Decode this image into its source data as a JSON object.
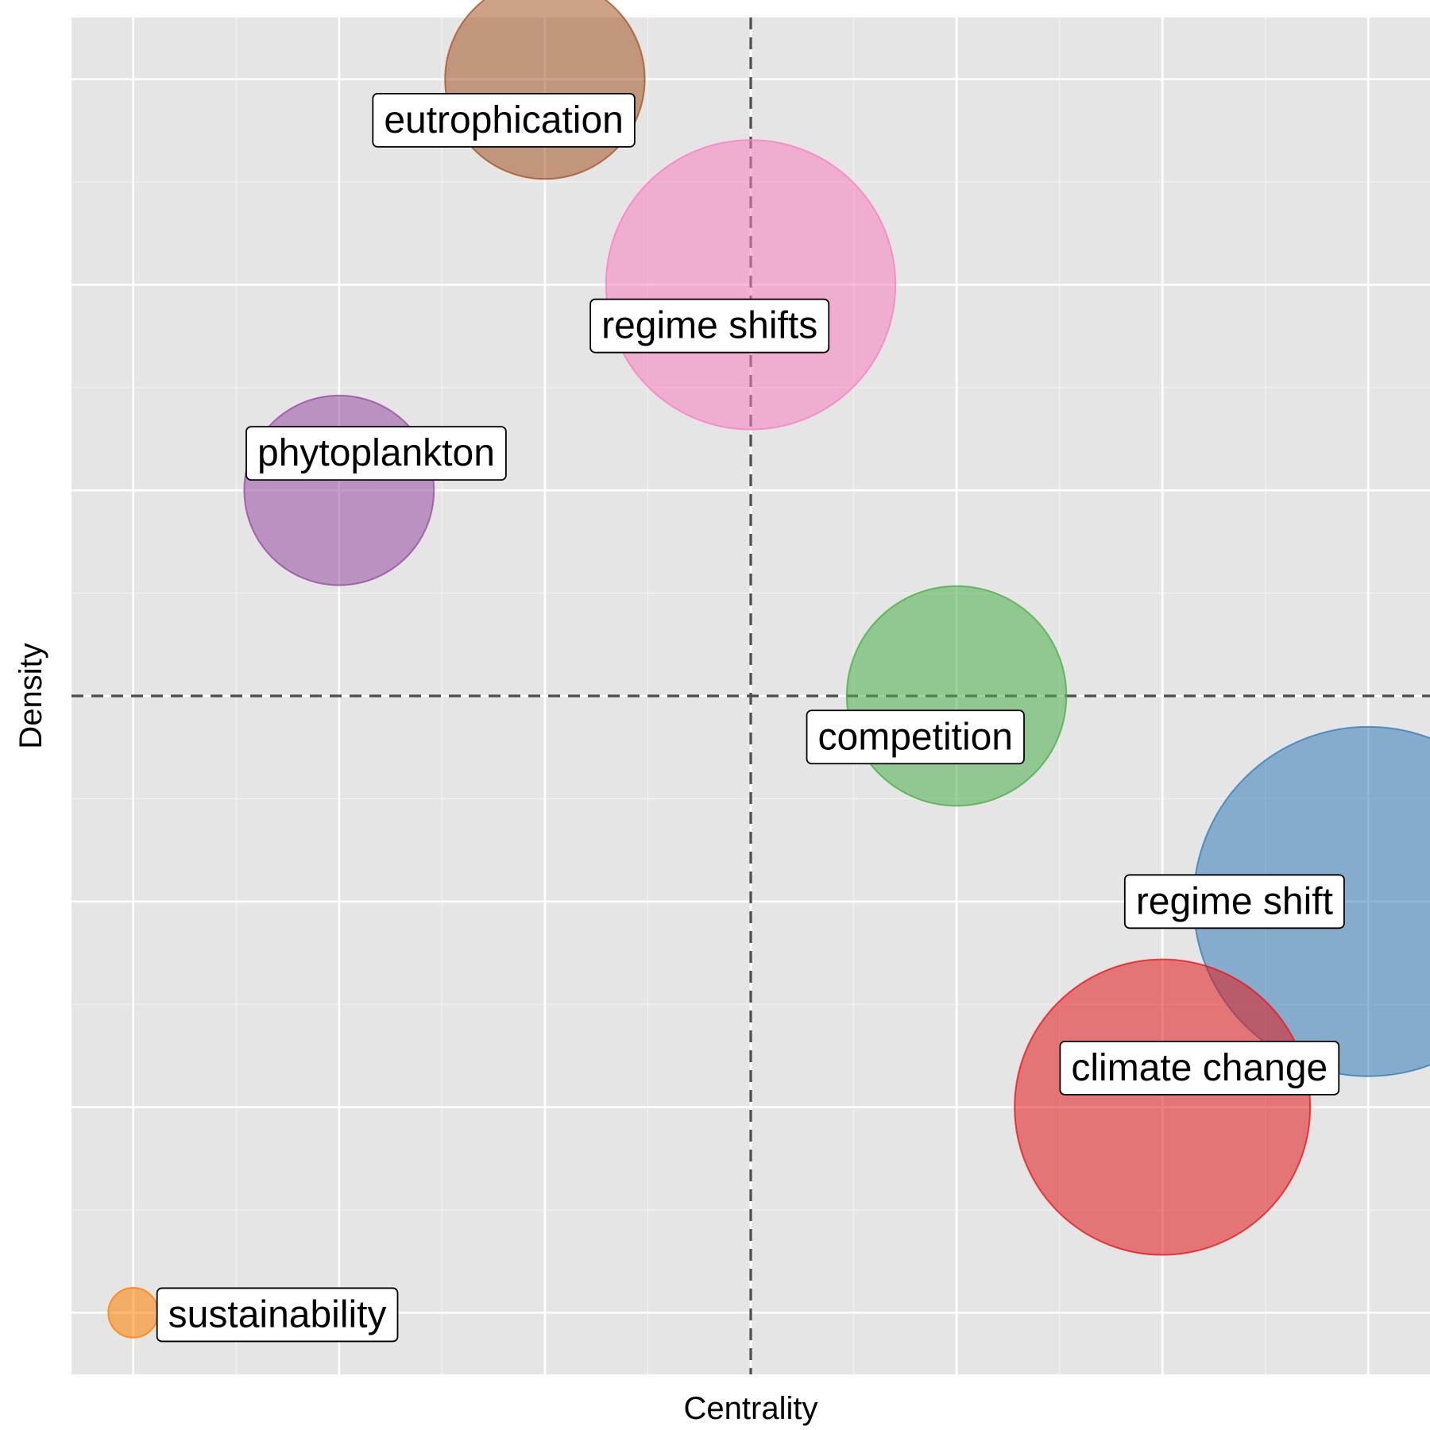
{
  "chart_data": {
    "type": "scatter",
    "title": "",
    "xlabel": "Centrality",
    "ylabel": "Density",
    "xlim": [
      0.7,
      7.3
    ],
    "ylim": [
      0.7,
      7.3
    ],
    "x_gridlines": [
      1,
      2,
      3,
      4,
      5,
      6,
      7
    ],
    "y_gridlines": [
      1,
      2,
      3,
      4,
      5,
      6,
      7
    ],
    "x_threshold": 4,
    "y_threshold": 4,
    "tick_labels_shown": false,
    "grid": true,
    "legend": "none",
    "background_color": "#e5e5e5",
    "points": [
      {
        "label": "eutrophication",
        "x": 3,
        "y": 7,
        "size": 1.0,
        "color": "#a65628"
      },
      {
        "label": "regime shifts",
        "x": 4,
        "y": 6,
        "size": 1.45,
        "color": "#f781bf"
      },
      {
        "label": "phytoplankton",
        "x": 2,
        "y": 5,
        "size": 0.95,
        "color": "#984ea3"
      },
      {
        "label": "competition",
        "x": 5,
        "y": 4,
        "size": 1.1,
        "color": "#4daf4a"
      },
      {
        "label": "regime shift",
        "x": 7,
        "y": 3,
        "size": 1.75,
        "color": "#377eb8"
      },
      {
        "label": "climate change",
        "x": 6,
        "y": 2,
        "size": 1.48,
        "color": "#e41a1c"
      },
      {
        "label": "sustainability",
        "x": 1,
        "y": 1,
        "size": 0.25,
        "color": "#ff7f00"
      }
    ]
  }
}
